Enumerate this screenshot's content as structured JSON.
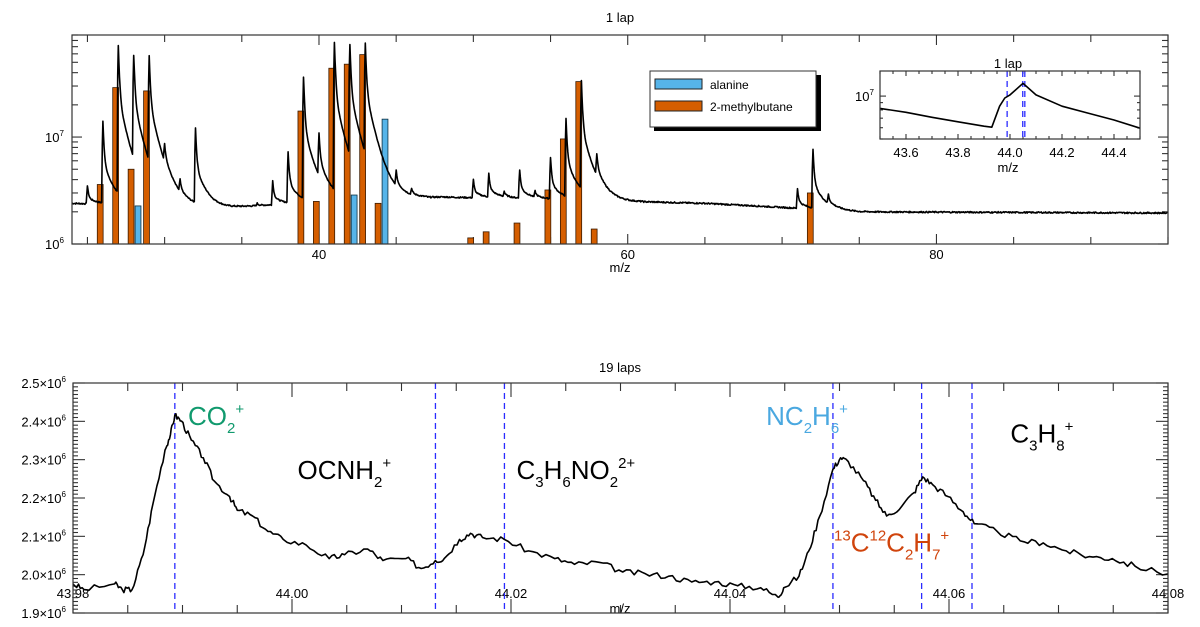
{
  "colors": {
    "alanine": "#56b4e9",
    "methylbutane": "#d55e00",
    "co2": "#119a6e",
    "nc2h6": "#4aa8e0",
    "c13": "#d0440c",
    "dashed": "#2b2bff"
  },
  "chart_data": [
    {
      "type": "line+bar",
      "title": "1 lap",
      "xlabel": "m/z",
      "ylabel": "",
      "xlim": [
        24,
        95
      ],
      "ylim": [
        1000000,
        90000000
      ],
      "yscale": "log",
      "xticks": [
        40,
        60,
        80
      ],
      "xtick_labels": [
        "40",
        "60",
        "80"
      ],
      "yticks": [
        {
          "value": 10000000,
          "base": "10",
          "exp": "7"
        },
        {
          "value": 1000000,
          "base": "10",
          "exp": "6"
        }
      ],
      "spectrum_baseline": [
        [
          24,
          2400000
        ],
        [
          34,
          2200000
        ],
        [
          48,
          2750000
        ],
        [
          65,
          2400000
        ],
        [
          75,
          2000000
        ],
        [
          95,
          1950000
        ]
      ],
      "spectrum_peaks": [
        [
          25,
          3500000
        ],
        [
          26,
          14000000
        ],
        [
          27,
          71000000
        ],
        [
          28,
          54000000
        ],
        [
          29,
          54000000
        ],
        [
          30,
          5100000
        ],
        [
          31,
          3200000
        ],
        [
          32,
          12000000
        ],
        [
          36,
          2400000
        ],
        [
          37,
          3900000
        ],
        [
          38,
          7200000
        ],
        [
          39,
          36000000
        ],
        [
          40,
          9000000
        ],
        [
          41,
          76000000
        ],
        [
          42,
          69000000
        ],
        [
          43,
          71000000
        ],
        [
          45,
          4000000
        ],
        [
          46,
          3100000
        ],
        [
          50,
          4000000
        ],
        [
          51,
          4500000
        ],
        [
          52,
          3000000
        ],
        [
          53,
          4900000
        ],
        [
          54,
          3000000
        ],
        [
          55,
          6400000
        ],
        [
          56,
          14700000
        ],
        [
          57,
          33000000
        ],
        [
          58,
          5100000
        ],
        [
          71,
          3300000
        ],
        [
          72,
          7600000
        ],
        [
          73,
          2600000
        ]
      ],
      "series": [
        {
          "name": "alanine",
          "type": "bar",
          "x": [
            28,
            42,
            44
          ],
          "values": [
            2270000,
            2870000,
            14700000
          ]
        },
        {
          "name": "2-methylbutane",
          "type": "bar",
          "x": [
            26,
            27,
            28,
            29,
            39,
            40,
            41,
            42,
            43,
            44,
            50,
            51,
            53,
            55,
            56,
            57,
            58,
            72
          ],
          "values": [
            3600000,
            29000000,
            5000000,
            27000000,
            17500000,
            2500000,
            44000000,
            48000000,
            59000000,
            2400000,
            1140000,
            1300000,
            1570000,
            3200000,
            9600000,
            33000000,
            1380000,
            3000000
          ]
        }
      ],
      "legend": {
        "placement": "top-center-right",
        "entries": [
          "alanine",
          "2-methylbutane"
        ]
      },
      "inset": {
        "title": "1 lap",
        "xlabel": "m/z",
        "xlim": [
          43.5,
          44.5
        ],
        "ylim": [
          5000000,
          15000000
        ],
        "yscale": "log",
        "xticks": [
          43.6,
          43.8,
          44.0,
          44.2,
          44.4
        ],
        "xtick_labels": [
          "43.6",
          "43.8",
          "44.0",
          "44.2",
          "44.4"
        ],
        "ytick": {
          "value": 10000000,
          "base": "10",
          "exp": "7"
        },
        "dashed_lines": [
          43.989,
          44.049,
          44.057
        ],
        "points": [
          [
            43.5,
            8200000
          ],
          [
            43.6,
            7700000
          ],
          [
            43.7,
            7100000
          ],
          [
            43.8,
            6600000
          ],
          [
            43.9,
            6150000
          ],
          [
            43.93,
            6050000
          ],
          [
            43.96,
            8500000
          ],
          [
            43.98,
            9700000
          ],
          [
            44.0,
            10200000
          ],
          [
            44.05,
            12300000
          ],
          [
            44.1,
            10200000
          ],
          [
            44.2,
            8500000
          ],
          [
            44.3,
            7600000
          ],
          [
            44.4,
            6800000
          ],
          [
            44.5,
            5950000
          ]
        ]
      }
    },
    {
      "type": "line",
      "title": "19 laps",
      "xlabel": "m/z",
      "ylabel": "",
      "xlim": [
        43.98,
        44.08
      ],
      "ylim": [
        1900000,
        2500000
      ],
      "xticks": [
        43.98,
        44.0,
        44.02,
        44.04,
        44.06,
        44.08
      ],
      "xtick_labels": [
        "43.98",
        "44.00",
        "44.02",
        "44.04",
        "44.06",
        "44.08"
      ],
      "yticks": [
        {
          "value": 2500000,
          "base": "2.5×10",
          "exp": "6"
        },
        {
          "value": 2400000,
          "base": "2.4×10",
          "exp": "6"
        },
        {
          "value": 2300000,
          "base": "2.3×10",
          "exp": "6"
        },
        {
          "value": 2200000,
          "base": "2.2×10",
          "exp": "6"
        },
        {
          "value": 2100000,
          "base": "2.1×10",
          "exp": "6"
        },
        {
          "value": 2000000,
          "base": "2.0×10",
          "exp": "6"
        },
        {
          "value": 1900000,
          "base": "1.9×10",
          "exp": "6"
        }
      ],
      "dashed_lines": [
        43.9893,
        44.0131,
        44.0194,
        44.0494,
        44.0575,
        44.0621
      ],
      "points": [
        [
          43.98,
          1976000
        ],
        [
          43.981,
          1961000
        ],
        [
          43.9838,
          1976000
        ],
        [
          43.9845,
          1961000
        ],
        [
          43.9854,
          1961000
        ],
        [
          43.9864,
          2052000
        ],
        [
          43.9873,
          2184000
        ],
        [
          43.9884,
          2325000
        ],
        [
          43.9889,
          2366000
        ],
        [
          43.9893,
          2416000
        ],
        [
          43.9899,
          2401000
        ],
        [
          43.9908,
          2351000
        ],
        [
          43.9919,
          2305000
        ],
        [
          43.9929,
          2244000
        ],
        [
          43.9943,
          2204000
        ],
        [
          43.995,
          2168000
        ],
        [
          43.9964,
          2153000
        ],
        [
          43.9978,
          2113000
        ],
        [
          43.9992,
          2092000
        ],
        [
          44.0013,
          2077000
        ],
        [
          44.0034,
          2042000
        ],
        [
          44.0048,
          2052000
        ],
        [
          44.0069,
          2067000
        ],
        [
          44.0083,
          2037000
        ],
        [
          44.0104,
          2042000
        ],
        [
          44.0118,
          2016000
        ],
        [
          44.0131,
          2037000
        ],
        [
          44.0139,
          2042000
        ],
        [
          44.0153,
          2092000
        ],
        [
          44.0163,
          2108000
        ],
        [
          44.0174,
          2097000
        ],
        [
          44.0194,
          2092000
        ],
        [
          44.0216,
          2062000
        ],
        [
          44.024,
          2042000
        ],
        [
          44.0258,
          2027000
        ],
        [
          44.0281,
          2032000
        ],
        [
          44.0302,
          2007000
        ],
        [
          44.0323,
          2002000
        ],
        [
          44.0344,
          1996000
        ],
        [
          44.0365,
          1981000
        ],
        [
          44.0386,
          1981000
        ],
        [
          44.0407,
          1971000
        ],
        [
          44.0428,
          1966000
        ],
        [
          44.0444,
          1941000
        ],
        [
          44.0449,
          1966000
        ],
        [
          44.0463,
          1996000
        ],
        [
          44.0472,
          2062000
        ],
        [
          44.0482,
          2153000
        ],
        [
          44.0494,
          2275000
        ],
        [
          44.0501,
          2305000
        ],
        [
          44.0508,
          2295000
        ],
        [
          44.0522,
          2245000
        ],
        [
          44.0533,
          2194000
        ],
        [
          44.0543,
          2153000
        ],
        [
          44.0557,
          2179000
        ],
        [
          44.0568,
          2214000
        ],
        [
          44.0576,
          2255000
        ],
        [
          44.0585,
          2235000
        ],
        [
          44.0599,
          2204000
        ],
        [
          44.0613,
          2164000
        ],
        [
          44.0623,
          2133000
        ],
        [
          44.0644,
          2113000
        ],
        [
          44.0665,
          2088000
        ],
        [
          44.0686,
          2083000
        ],
        [
          44.0707,
          2062000
        ],
        [
          44.0728,
          2047000
        ],
        [
          44.0749,
          2042000
        ],
        [
          44.077,
          2022000
        ],
        [
          44.08,
          2002000
        ]
      ],
      "annotations": [
        {
          "id": "co2",
          "color_key": "co2",
          "x": 43.9905,
          "y": 2390000,
          "parts": [
            [
              "CO",
              "n"
            ],
            [
              "2",
              "sub"
            ],
            [
              "+",
              "sup"
            ]
          ]
        },
        {
          "id": "ocnh2",
          "color_key": null,
          "x": 44.0005,
          "y": 2250000,
          "parts": [
            [
              "OCNH",
              "n"
            ],
            [
              "2",
              "sub"
            ],
            [
              "+",
              "sup"
            ]
          ]
        },
        {
          "id": "c3h6no2",
          "color_key": null,
          "x": 44.0205,
          "y": 2250000,
          "parts": [
            [
              "C",
              "n"
            ],
            [
              "3",
              "sub"
            ],
            [
              "H",
              "n"
            ],
            [
              "6",
              "sub"
            ],
            [
              "NO",
              "n"
            ],
            [
              "2",
              "sub"
            ],
            [
              "2+",
              "sup"
            ]
          ]
        },
        {
          "id": "nc2h6",
          "color_key": "nc2h6",
          "x": 44.0433,
          "y": 2390000,
          "parts": [
            [
              "NC",
              "n"
            ],
            [
              "2",
              "sub"
            ],
            [
              "H",
              "n"
            ],
            [
              "6",
              "sub"
            ],
            [
              "+",
              "sup"
            ]
          ]
        },
        {
          "id": "c3h8",
          "color_key": null,
          "x": 44.0656,
          "y": 2345000,
          "parts": [
            [
              "C",
              "n"
            ],
            [
              "3",
              "sub"
            ],
            [
              "H",
              "n"
            ],
            [
              "8",
              "sub"
            ],
            [
              "+",
              "sup"
            ]
          ]
        },
        {
          "id": "c13c12c2h7",
          "color_key": "c13",
          "x": 44.0495,
          "y": 2060000,
          "parts": [
            [
              "13",
              "sup"
            ],
            [
              "C",
              "n"
            ],
            [
              "12",
              "sup"
            ],
            [
              "C",
              "n"
            ],
            [
              "2",
              "sub"
            ],
            [
              "H",
              "n"
            ],
            [
              "7",
              "sub"
            ],
            [
              "+",
              "sup"
            ]
          ]
        }
      ]
    }
  ]
}
